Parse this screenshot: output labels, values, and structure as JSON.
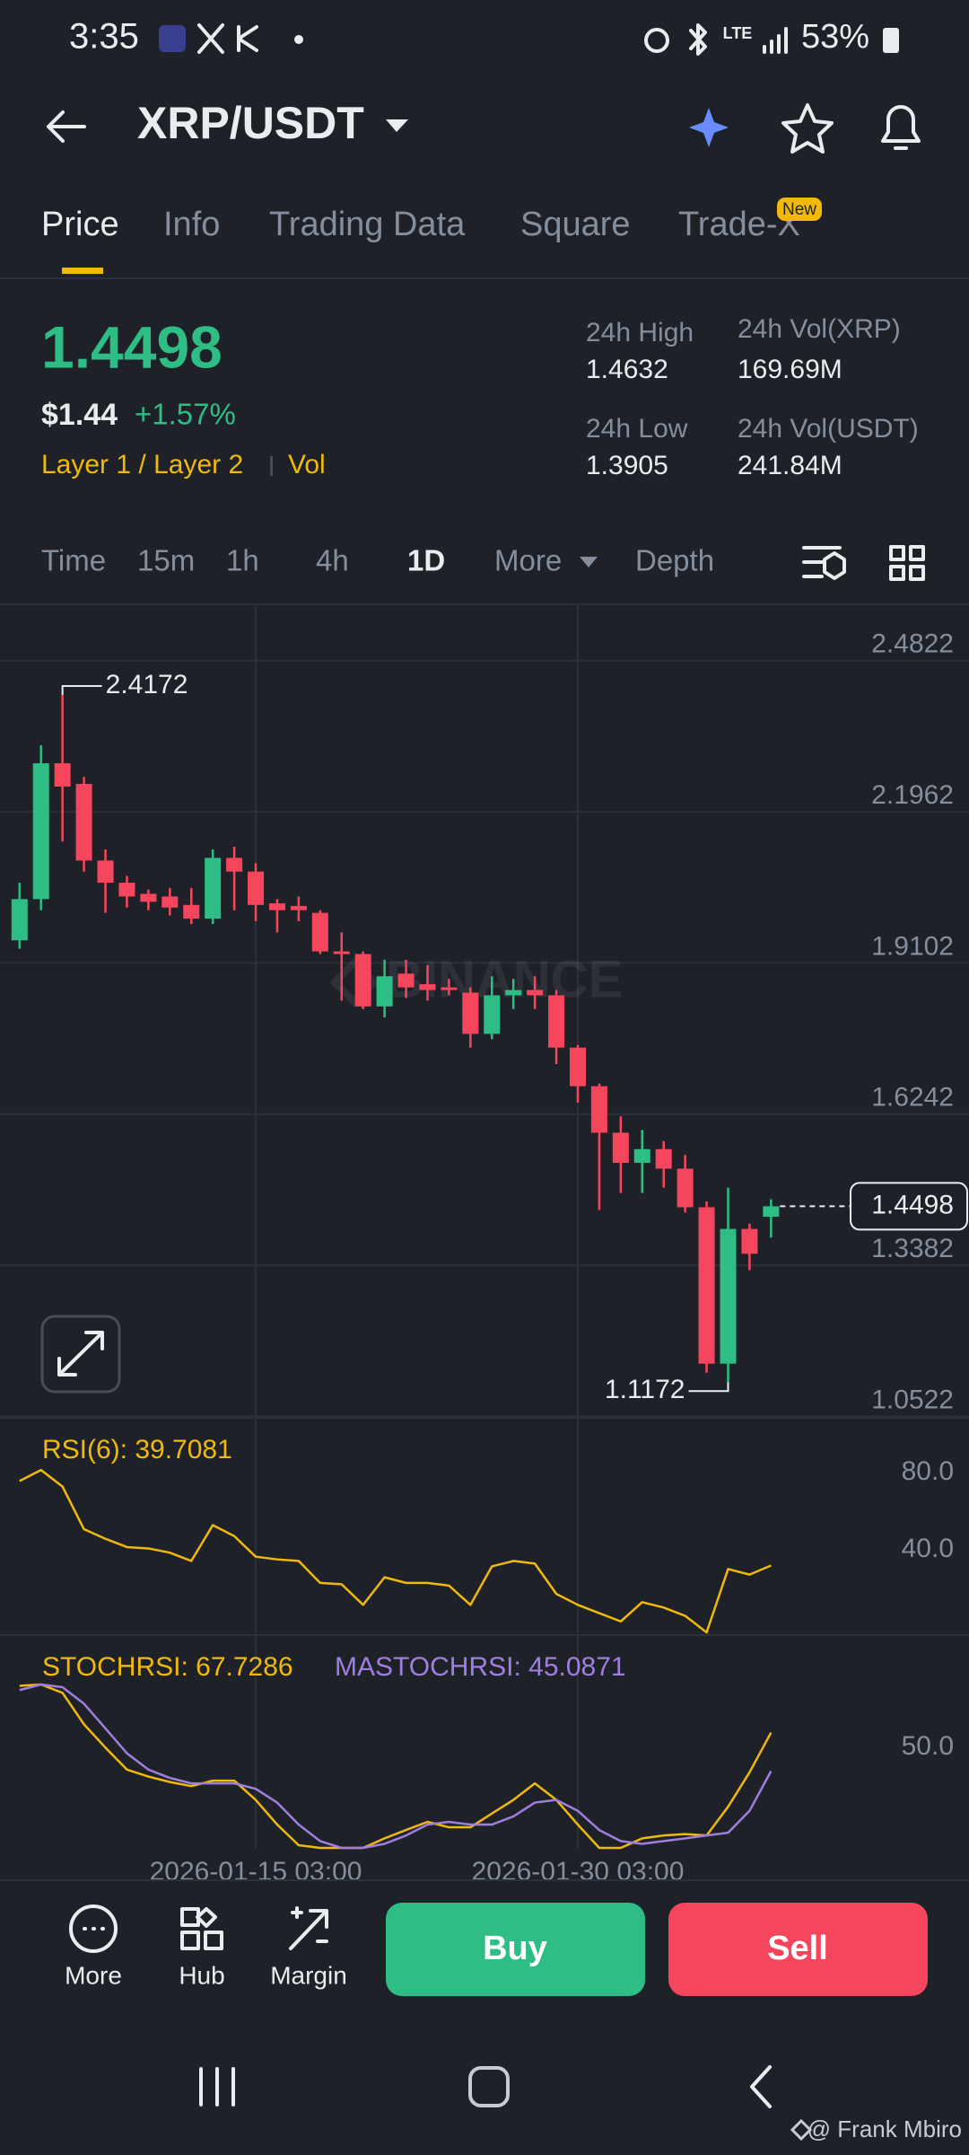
{
  "status_bar": {
    "time": "3:35",
    "battery": "53%"
  },
  "header": {
    "pair": "XRP/USDT"
  },
  "tabs": [
    "Price",
    "Info",
    "Trading Data",
    "Square",
    "Trade-X"
  ],
  "tab_badge": "New",
  "ticker": {
    "last": "1.4498",
    "fiat": "$1.44",
    "change": "+1.57%",
    "tags": [
      "Layer 1 / Layer 2",
      "Vol"
    ],
    "stats": [
      {
        "label": "24h High",
        "value": "1.4632"
      },
      {
        "label": "24h Vol(XRP)",
        "value": "169.69M"
      },
      {
        "label": "24h Low",
        "value": "1.3905"
      },
      {
        "label": "24h Vol(USDT)",
        "value": "241.84M"
      }
    ]
  },
  "intervals": [
    "Time",
    "15m",
    "1h",
    "4h",
    "1D",
    "More",
    "Depth"
  ],
  "chart_data": [
    {
      "type": "candlestick",
      "watermark": "BINANCE",
      "categories": [
        null,
        null,
        null,
        null,
        null,
        null,
        null,
        null,
        null,
        null,
        null,
        "2026-01-15 03:00",
        null,
        null,
        null,
        null,
        null,
        null,
        null,
        null,
        null,
        null,
        null,
        null,
        null,
        null,
        "2026-01-30 03:00",
        null,
        null,
        null,
        null,
        null,
        null,
        null,
        null,
        null
      ],
      "open": [
        1.953,
        2.031,
        2.288,
        2.249,
        2.104,
        2.062,
        2.041,
        2.036,
        2.02,
        1.994,
        2.109,
        2.083,
        2.023,
        2.018,
        2.005,
        1.932,
        1.927,
        1.828,
        1.89,
        1.87,
        1.864,
        1.854,
        1.776,
        1.849,
        1.859,
        1.849,
        1.75,
        1.677,
        1.589,
        1.532,
        1.558,
        1.521,
        1.448,
        1.152,
        1.407,
        1.43
      ],
      "high": [
        2.062,
        2.322,
        2.4172,
        2.262,
        2.125,
        2.075,
        2.049,
        2.052,
        2.052,
        2.125,
        2.13,
        2.099,
        2.031,
        2.036,
        2.01,
        1.968,
        1.932,
        1.916,
        1.916,
        1.906,
        1.88,
        1.864,
        1.885,
        1.88,
        1.885,
        1.859,
        1.755,
        1.682,
        1.62,
        1.594,
        1.573,
        1.547,
        1.459,
        1.485,
        1.417,
        1.4632
      ],
      "low": [
        1.937,
        2.01,
        2.14,
        2.083,
        2.005,
        2.015,
        2.01,
        2.0,
        1.984,
        1.984,
        2.01,
        1.989,
        1.968,
        1.989,
        1.927,
        1.839,
        1.823,
        1.807,
        1.844,
        1.839,
        1.849,
        1.75,
        1.766,
        1.823,
        1.823,
        1.719,
        1.646,
        1.443,
        1.475,
        1.475,
        1.485,
        1.438,
        1.135,
        1.1172,
        1.329,
        1.3905
      ],
      "close": [
        2.031,
        2.288,
        2.244,
        2.104,
        2.062,
        2.036,
        2.026,
        2.015,
        1.994,
        2.109,
        2.083,
        2.02,
        2.01,
        2.01,
        1.932,
        1.927,
        1.828,
        1.885,
        1.864,
        1.859,
        1.859,
        1.776,
        1.849,
        1.859,
        1.849,
        1.75,
        1.677,
        1.589,
        1.532,
        1.558,
        1.521,
        1.448,
        1.152,
        1.407,
        1.36,
        1.4498
      ],
      "up_color": "#2ebd85",
      "down_color": "#f6465d",
      "ylim": [
        1.0496,
        2.5888
      ],
      "yticks": [
        2.4822,
        2.1962,
        1.9102,
        1.6242,
        1.3382,
        1.0522
      ],
      "grid": true
    },
    {
      "type": "line",
      "series": [
        {
          "name": "RSI(6): 39.7081",
          "color": "#f0b90b",
          "values": [
            83.6,
            89.3,
            80.7,
            58.6,
            53.6,
            49.3,
            48.6,
            46.4,
            42.1,
            60.7,
            55.0,
            44.3,
            42.9,
            42.1,
            30.7,
            30.0,
            19.3,
            33.6,
            30.7,
            30.7,
            29.3,
            19.3,
            39.3,
            42.1,
            40.7,
            25.0,
            19.3,
            15.0,
            10.7,
            20.7,
            17.9,
            13.6,
            5.0,
            37.9,
            35.0,
            39.7081
          ]
        }
      ],
      "ylim": [
        3.6,
        116.4
      ],
      "yticks": [
        {
          "value": 80,
          "label": "80.0"
        },
        {
          "value": 40,
          "label": "40.0"
        }
      ],
      "grid": false
    },
    {
      "type": "line",
      "series": [
        {
          "name": "STOCHRSI: 67.7286",
          "color": "#f0b90b",
          "values": [
            95.2,
            96.0,
            91.1,
            72.6,
            58.9,
            46.0,
            41.9,
            38.7,
            36.3,
            39.5,
            39.5,
            28.2,
            13.7,
            1.6,
            0,
            0,
            0,
            5.6,
            10.5,
            15.3,
            12.1,
            12.1,
            20.2,
            28.2,
            37.9,
            28.2,
            13.7,
            0,
            0,
            5.6,
            7.3,
            8.1,
            7.3,
            24.2,
            44.4,
            67.7286
          ]
        },
        {
          "name": "MASTOCHRSI: 45.0871",
          "color": "#a07ee0",
          "values": [
            92.7,
            96.0,
            94.4,
            84.7,
            70.2,
            55.6,
            46.0,
            41.1,
            37.9,
            37.9,
            37.9,
            34.7,
            26.6,
            13.7,
            4.0,
            0,
            0,
            2.4,
            7.3,
            13.7,
            15.3,
            13.7,
            13.7,
            18.5,
            26.6,
            28.2,
            21.8,
            10.5,
            4.0,
            2.4,
            4.0,
            5.6,
            7.3,
            8.9,
            21.8,
            45.0871
          ]
        }
      ],
      "ylim": [
        0,
        125
      ],
      "yticks": [
        {
          "value": 50,
          "label": "50.0"
        }
      ],
      "grid": false
    }
  ],
  "bottom_bar": {
    "items": [
      "More",
      "Hub",
      "Margin"
    ],
    "buy": "Buy",
    "sell": "Sell"
  },
  "credit": "@ Frank Mbiro"
}
